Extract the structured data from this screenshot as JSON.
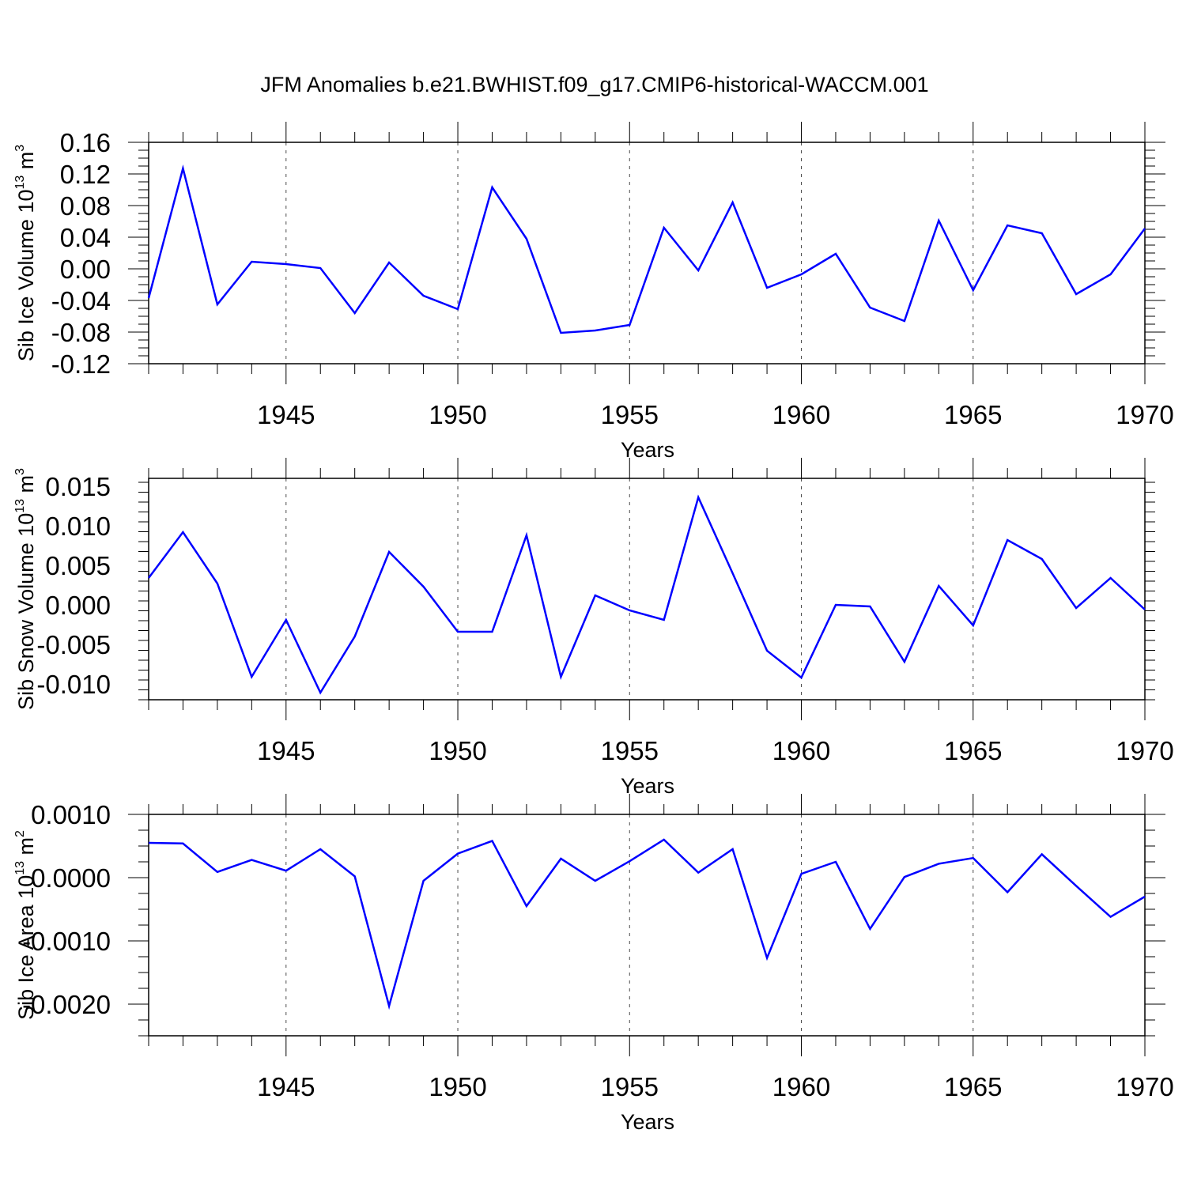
{
  "title": "JFM Anomalies b.e21.BWHIST.f09_g17.CMIP6-historical-WACCM.001",
  "colors": {
    "line": "#0000ff",
    "axis": "#000000",
    "grid": "#000000",
    "background": "#ffffff"
  },
  "chart_data": [
    {
      "type": "line",
      "ylabel": {
        "prefix": "Sib Ice Volume 10",
        "exp": "13",
        "unit": " m",
        "unit_exp": "3"
      },
      "xlabel": "Years",
      "xlim": [
        1941,
        1970
      ],
      "ylim": [
        -0.12,
        0.16
      ],
      "yticks": [
        -0.12,
        -0.08,
        -0.04,
        0.0,
        0.04,
        0.08,
        0.12,
        0.16
      ],
      "ytick_labels": [
        "-0.12",
        "-0.08",
        "-0.04",
        "0.00",
        "0.04",
        "0.08",
        "0.12",
        "0.16"
      ],
      "xticks": [
        1945,
        1950,
        1955,
        1960,
        1965,
        1970
      ],
      "xtick_labels": [
        "1945",
        "1950",
        "1955",
        "1960",
        "1965",
        "1970"
      ],
      "grid": "vertical-dashed",
      "x": [
        1941,
        1942,
        1943,
        1944,
        1945,
        1946,
        1947,
        1948,
        1949,
        1950,
        1951,
        1952,
        1953,
        1954,
        1955,
        1956,
        1957,
        1958,
        1959,
        1960,
        1961,
        1962,
        1963,
        1964,
        1965,
        1966,
        1967,
        1968,
        1969,
        1970
      ],
      "y": [
        -0.037,
        0.127,
        -0.045,
        0.009,
        0.006,
        0.001,
        -0.056,
        0.008,
        -0.034,
        -0.051,
        0.103,
        0.038,
        -0.081,
        -0.078,
        -0.071,
        0.052,
        -0.002,
        0.084,
        -0.024,
        -0.007,
        0.019,
        -0.049,
        -0.066,
        0.061,
        -0.027,
        0.055,
        0.045,
        -0.032,
        -0.007,
        0.051
      ]
    },
    {
      "type": "line",
      "ylabel": {
        "prefix": "Sib Snow Volume 10",
        "exp": "13",
        "unit": " m",
        "unit_exp": "3"
      },
      "xlabel": "Years",
      "xlim": [
        1941,
        1970
      ],
      "ylim": [
        -0.012,
        0.016
      ],
      "yticks": [
        -0.01,
        -0.005,
        0.0,
        0.005,
        0.01,
        0.015
      ],
      "ytick_labels": [
        "-0.010",
        "-0.005",
        "0.000",
        "0.005",
        "0.010",
        "0.015"
      ],
      "xticks": [
        1945,
        1950,
        1955,
        1960,
        1965,
        1970
      ],
      "xtick_labels": [
        "1945",
        "1950",
        "1955",
        "1960",
        "1965",
        "1970"
      ],
      "grid": "vertical-dashed",
      "x": [
        1941,
        1942,
        1943,
        1944,
        1945,
        1946,
        1947,
        1948,
        1949,
        1950,
        1951,
        1952,
        1953,
        1954,
        1955,
        1956,
        1957,
        1958,
        1959,
        1960,
        1961,
        1962,
        1963,
        1964,
        1965,
        1966,
        1967,
        1968,
        1969,
        1970
      ],
      "y": [
        0.0034,
        0.0092,
        0.0027,
        -0.0091,
        -0.0019,
        -0.0111,
        -0.004,
        0.0067,
        0.0023,
        -0.0034,
        -0.0034,
        0.0088,
        -0.0091,
        0.0012,
        -0.0007,
        -0.0019,
        0.0136,
        0.004,
        -0.0058,
        -0.0092,
        0.0,
        -0.0002,
        -0.0072,
        0.0024,
        -0.0026,
        0.0082,
        0.0058,
        -0.0004,
        0.0034,
        -0.0006
      ]
    },
    {
      "type": "line",
      "ylabel": {
        "prefix": "Sib Ice Area 10",
        "exp": "13",
        "unit": " m",
        "unit_exp": "2"
      },
      "xlabel": "Years",
      "xlim": [
        1941,
        1970
      ],
      "ylim": [
        -0.0025,
        0.001
      ],
      "yticks": [
        -0.002,
        -0.001,
        0.0,
        0.001
      ],
      "ytick_labels": [
        "-0.0020",
        "-0.0010",
        "0.0000",
        "0.0010"
      ],
      "xticks": [
        1945,
        1950,
        1955,
        1960,
        1965,
        1970
      ],
      "xtick_labels": [
        "1945",
        "1950",
        "1955",
        "1960",
        "1965",
        "1970"
      ],
      "grid": "vertical-dashed",
      "x": [
        1941,
        1942,
        1943,
        1944,
        1945,
        1946,
        1947,
        1948,
        1949,
        1950,
        1951,
        1952,
        1953,
        1954,
        1955,
        1956,
        1957,
        1958,
        1959,
        1960,
        1961,
        1962,
        1963,
        1964,
        1965,
        1966,
        1967,
        1968,
        1969,
        1970
      ],
      "y": [
        0.00055,
        0.00054,
        9e-05,
        0.00028,
        0.00011,
        0.00045,
        2e-05,
        -0.00203,
        -5e-05,
        0.00038,
        0.00058,
        -0.00045,
        0.0003,
        -5e-05,
        0.00026,
        0.0006,
        8e-05,
        0.00045,
        -0.00127,
        6e-05,
        0.00025,
        -0.00081,
        1e-05,
        0.00022,
        0.00031,
        -0.00023,
        0.00037,
        -0.00013,
        -0.00062,
        -0.0003
      ]
    }
  ]
}
